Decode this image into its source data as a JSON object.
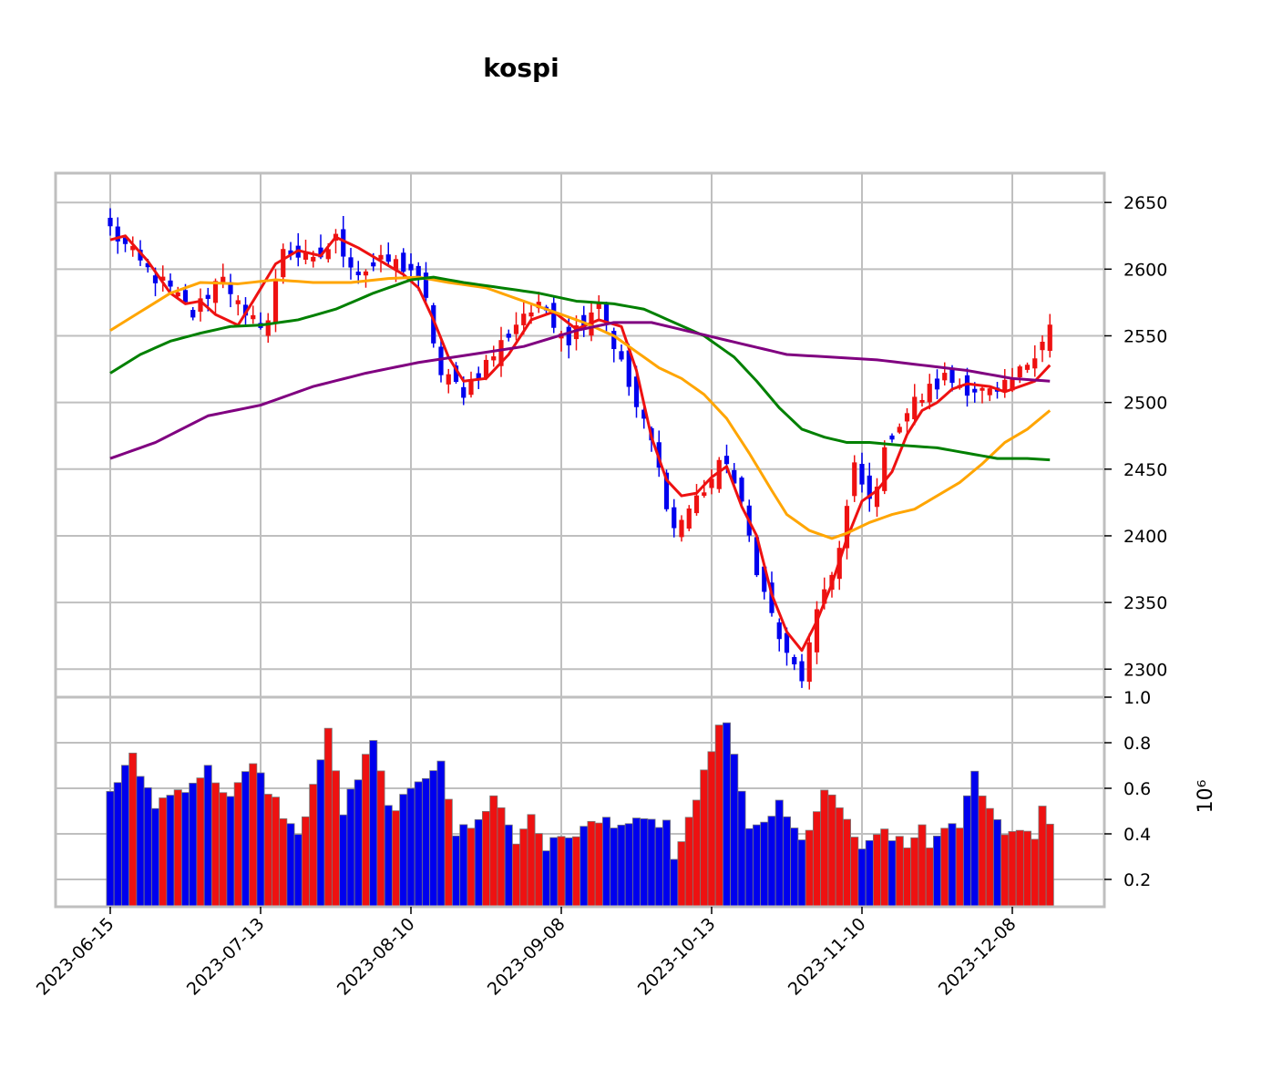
{
  "title": "kospi",
  "chart_data": {
    "type": "candlestick",
    "title": "kospi",
    "price_axis": {
      "ticks": [
        2300,
        2350,
        2400,
        2450,
        2500,
        2550,
        2600,
        2650
      ],
      "range": [
        2279,
        2672
      ],
      "position": "right"
    },
    "volume_axis": {
      "ticks": [
        0.2,
        0.4,
        0.6,
        0.8,
        1.0
      ],
      "range": [
        0.08,
        1.0
      ],
      "exponent_label": "10⁶",
      "multiplier": 1000000
    },
    "x_axis": {
      "tick_labels": [
        "2023-06-15",
        "2023-07-13",
        "2023-08-10",
        "2023-09-08",
        "2023-10-13",
        "2023-11-10",
        "2023-12-08"
      ],
      "tick_index": [
        0,
        20,
        40,
        60,
        80,
        100,
        120
      ],
      "label_rotation": -45
    },
    "grid": true,
    "up_color": "#ee1111",
    "down_color": "#0000ee",
    "candles": {
      "count": 126,
      "fields": [
        "open",
        "high",
        "low",
        "close",
        "volume"
      ],
      "ohlc_keypoints": [
        [
          0,
          2630
        ],
        [
          4,
          2604
        ],
        [
          8,
          2584
        ],
        [
          11,
          2566
        ],
        [
          15,
          2598
        ],
        [
          18,
          2560
        ],
        [
          21,
          2562
        ],
        [
          23,
          2617
        ],
        [
          27,
          2604
        ],
        [
          30,
          2622
        ],
        [
          33,
          2598
        ],
        [
          37,
          2606
        ],
        [
          40,
          2600
        ],
        [
          42,
          2574
        ],
        [
          44,
          2520
        ],
        [
          47,
          2509
        ],
        [
          51,
          2536
        ],
        [
          55,
          2568
        ],
        [
          58,
          2570
        ],
        [
          61,
          2548
        ],
        [
          65,
          2578
        ],
        [
          67,
          2544
        ],
        [
          70,
          2496
        ],
        [
          72,
          2470
        ],
        [
          75,
          2405
        ],
        [
          78,
          2428
        ],
        [
          82,
          2458
        ],
        [
          84,
          2420
        ],
        [
          87,
          2356
        ],
        [
          90,
          2308
        ],
        [
          92,
          2294
        ],
        [
          95,
          2360
        ],
        [
          97,
          2390
        ],
        [
          99,
          2450
        ],
        [
          101,
          2425
        ],
        [
          104,
          2478
        ],
        [
          107,
          2500
        ],
        [
          111,
          2518
        ],
        [
          115,
          2510
        ],
        [
          118,
          2504
        ],
        [
          121,
          2522
        ],
        [
          125,
          2558
        ]
      ],
      "volume_keypoints": [
        [
          0,
          0.59
        ],
        [
          3,
          0.73
        ],
        [
          6,
          0.53
        ],
        [
          10,
          0.61
        ],
        [
          13,
          0.68
        ],
        [
          16,
          0.56
        ],
        [
          19,
          0.7
        ],
        [
          23,
          0.49
        ],
        [
          25,
          0.38
        ],
        [
          28,
          0.73
        ],
        [
          29,
          0.84
        ],
        [
          31,
          0.5
        ],
        [
          35,
          0.8
        ],
        [
          37,
          0.51
        ],
        [
          40,
          0.57
        ],
        [
          44,
          0.74
        ],
        [
          46,
          0.4
        ],
        [
          49,
          0.45
        ],
        [
          51,
          0.58
        ],
        [
          54,
          0.36
        ],
        [
          56,
          0.49
        ],
        [
          58,
          0.34
        ],
        [
          62,
          0.41
        ],
        [
          66,
          0.46
        ],
        [
          70,
          0.44
        ],
        [
          74,
          0.45
        ],
        [
          75,
          0.29
        ],
        [
          78,
          0.52
        ],
        [
          80,
          0.79
        ],
        [
          82,
          0.91
        ],
        [
          85,
          0.4
        ],
        [
          89,
          0.52
        ],
        [
          92,
          0.36
        ],
        [
          95,
          0.58
        ],
        [
          98,
          0.47
        ],
        [
          100,
          0.31
        ],
        [
          103,
          0.42
        ],
        [
          106,
          0.33
        ],
        [
          108,
          0.44
        ],
        [
          109,
          0.36
        ],
        [
          113,
          0.44
        ],
        [
          115,
          0.66
        ],
        [
          119,
          0.39
        ],
        [
          121,
          0.44
        ],
        [
          123,
          0.38
        ],
        [
          124,
          0.53
        ],
        [
          125,
          0.46
        ]
      ]
    },
    "series": [
      {
        "color": "#ee1111",
        "values_keypoints": [
          [
            0,
            2622
          ],
          [
            2,
            2625
          ],
          [
            5,
            2606
          ],
          [
            8,
            2582
          ],
          [
            10,
            2574
          ],
          [
            12,
            2576
          ],
          [
            14,
            2566
          ],
          [
            17,
            2558
          ],
          [
            19,
            2576
          ],
          [
            22,
            2604
          ],
          [
            25,
            2614
          ],
          [
            28,
            2610
          ],
          [
            30,
            2624
          ],
          [
            33,
            2616
          ],
          [
            36,
            2606
          ],
          [
            39,
            2596
          ],
          [
            41,
            2586
          ],
          [
            43,
            2562
          ],
          [
            45,
            2534
          ],
          [
            47,
            2516
          ],
          [
            50,
            2518
          ],
          [
            53,
            2536
          ],
          [
            56,
            2562
          ],
          [
            59,
            2568
          ],
          [
            62,
            2555
          ],
          [
            65,
            2562
          ],
          [
            68,
            2557
          ],
          [
            70,
            2524
          ],
          [
            72,
            2474
          ],
          [
            74,
            2442
          ],
          [
            76,
            2430
          ],
          [
            78,
            2432
          ],
          [
            80,
            2444
          ],
          [
            82,
            2452
          ],
          [
            84,
            2422
          ],
          [
            86,
            2400
          ],
          [
            88,
            2356
          ],
          [
            90,
            2328
          ],
          [
            92,
            2314
          ],
          [
            94,
            2336
          ],
          [
            96,
            2364
          ],
          [
            98,
            2398
          ],
          [
            100,
            2426
          ],
          [
            102,
            2434
          ],
          [
            104,
            2448
          ],
          [
            106,
            2476
          ],
          [
            108,
            2494
          ],
          [
            110,
            2500
          ],
          [
            112,
            2510
          ],
          [
            114,
            2514
          ],
          [
            117,
            2512
          ],
          [
            119,
            2508
          ],
          [
            121,
            2512
          ],
          [
            123,
            2516
          ],
          [
            125,
            2528
          ]
        ]
      },
      {
        "color": "#ffa500",
        "values_keypoints": [
          [
            0,
            2554
          ],
          [
            4,
            2568
          ],
          [
            8,
            2582
          ],
          [
            12,
            2590
          ],
          [
            17,
            2589
          ],
          [
            22,
            2592
          ],
          [
            27,
            2590
          ],
          [
            32,
            2590
          ],
          [
            37,
            2593
          ],
          [
            41,
            2594
          ],
          [
            45,
            2590
          ],
          [
            50,
            2586
          ],
          [
            55,
            2576
          ],
          [
            60,
            2566
          ],
          [
            63,
            2560
          ],
          [
            67,
            2550
          ],
          [
            70,
            2538
          ],
          [
            73,
            2526
          ],
          [
            76,
            2518
          ],
          [
            79,
            2506
          ],
          [
            82,
            2488
          ],
          [
            85,
            2462
          ],
          [
            88,
            2434
          ],
          [
            90,
            2416
          ],
          [
            93,
            2404
          ],
          [
            96,
            2398
          ],
          [
            98,
            2402
          ],
          [
            101,
            2410
          ],
          [
            104,
            2416
          ],
          [
            107,
            2420
          ],
          [
            110,
            2430
          ],
          [
            113,
            2440
          ],
          [
            116,
            2454
          ],
          [
            119,
            2470
          ],
          [
            122,
            2480
          ],
          [
            125,
            2494
          ]
        ]
      },
      {
        "color": "#008000",
        "values_keypoints": [
          [
            0,
            2522
          ],
          [
            4,
            2536
          ],
          [
            8,
            2546
          ],
          [
            12,
            2552
          ],
          [
            16,
            2557
          ],
          [
            20,
            2558
          ],
          [
            25,
            2562
          ],
          [
            30,
            2570
          ],
          [
            35,
            2582
          ],
          [
            40,
            2592
          ],
          [
            43,
            2594
          ],
          [
            47,
            2590
          ],
          [
            52,
            2586
          ],
          [
            57,
            2582
          ],
          [
            62,
            2576
          ],
          [
            67,
            2574
          ],
          [
            71,
            2570
          ],
          [
            75,
            2560
          ],
          [
            79,
            2550
          ],
          [
            83,
            2534
          ],
          [
            86,
            2516
          ],
          [
            89,
            2496
          ],
          [
            92,
            2480
          ],
          [
            95,
            2474
          ],
          [
            98,
            2470
          ],
          [
            101,
            2470
          ],
          [
            105,
            2468
          ],
          [
            110,
            2466
          ],
          [
            114,
            2462
          ],
          [
            118,
            2458
          ],
          [
            122,
            2458
          ],
          [
            125,
            2457
          ]
        ]
      },
      {
        "color": "#800080",
        "values_keypoints": [
          [
            0,
            2458
          ],
          [
            6,
            2470
          ],
          [
            13,
            2490
          ],
          [
            20,
            2498
          ],
          [
            27,
            2512
          ],
          [
            34,
            2522
          ],
          [
            41,
            2530
          ],
          [
            48,
            2536
          ],
          [
            55,
            2542
          ],
          [
            62,
            2554
          ],
          [
            67,
            2560
          ],
          [
            72,
            2560
          ],
          [
            78,
            2552
          ],
          [
            84,
            2544
          ],
          [
            90,
            2536
          ],
          [
            96,
            2534
          ],
          [
            102,
            2532
          ],
          [
            108,
            2528
          ],
          [
            114,
            2524
          ],
          [
            120,
            2518
          ],
          [
            125,
            2516
          ]
        ]
      }
    ]
  }
}
